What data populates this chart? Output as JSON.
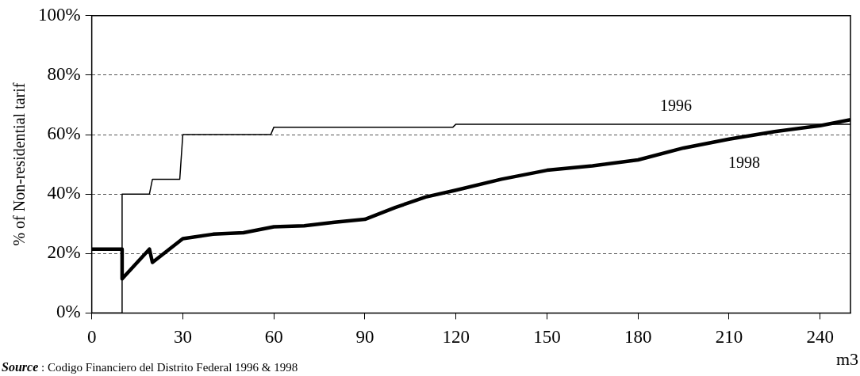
{
  "chart_data": {
    "type": "line",
    "ylabel": "% of Non-residential tarif",
    "xlabel": "m3",
    "annotations": [
      "Source : Codigo Financiero del Distrito Federal 1996 & 1998"
    ],
    "xlim": [
      0,
      250
    ],
    "xticks": [
      0,
      30,
      60,
      90,
      120,
      150,
      180,
      210,
      240
    ],
    "ylim": [
      0,
      100
    ],
    "yticks": [
      {
        "value": 0,
        "label": "0%"
      },
      {
        "value": 20,
        "label": "20%"
      },
      {
        "value": 40,
        "label": "40%"
      },
      {
        "value": 60,
        "label": "60%"
      },
      {
        "value": 80,
        "label": "80%"
      },
      {
        "value": 100,
        "label": "100%"
      }
    ],
    "grid": "y",
    "legend": false,
    "marker": "none",
    "line_style": "solid",
    "series": [
      {
        "name": "1996",
        "color": "#000000",
        "x": [
          0,
          10,
          10,
          19,
          20,
          29,
          30,
          59,
          60,
          119,
          120,
          250
        ],
        "values": [
          0,
          0,
          40,
          40,
          45,
          45,
          60,
          60,
          62.5,
          62.5,
          63.5,
          63.5
        ]
      },
      {
        "name": "1998",
        "color": "#000000",
        "x": [
          0,
          10,
          10,
          19,
          20,
          30,
          40,
          50,
          60,
          70,
          80,
          90,
          100,
          110,
          120,
          135,
          150,
          165,
          180,
          195,
          210,
          225,
          240,
          250
        ],
        "values": [
          21.5,
          21.5,
          11.5,
          21.5,
          17,
          25,
          26.5,
          27,
          29,
          29.3,
          30.5,
          31.5,
          35.5,
          39,
          41.3,
          45,
          48,
          49.5,
          51.5,
          55.5,
          58.5,
          61,
          63,
          65
        ]
      }
    ]
  }
}
